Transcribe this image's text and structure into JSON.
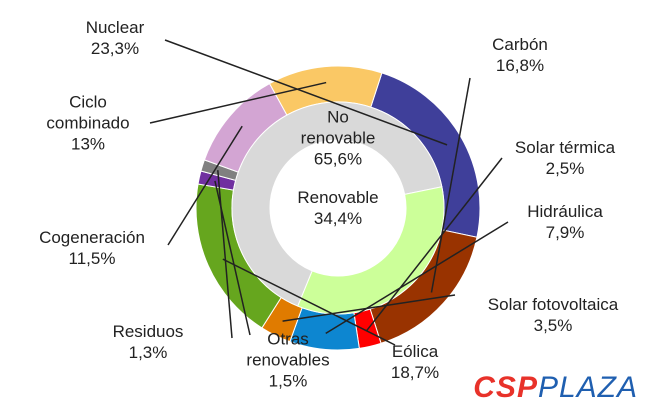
{
  "chart_data": {
    "type": "donut",
    "outer": {
      "categories": [
        "Nuclear",
        "Carbón",
        "Solar térmica",
        "Hidráulica",
        "Solar fotovoltaica",
        "Eólica",
        "Otras renovables",
        "Residuos",
        "Cogeneración",
        "Ciclo combinado"
      ],
      "values": [
        23.3,
        16.8,
        2.5,
        7.9,
        3.5,
        18.7,
        1.5,
        1.3,
        11.5,
        13
      ],
      "value_labels": [
        "23,3%",
        "16,8%",
        "2,5%",
        "7,9%",
        "3,5%",
        "18,7%",
        "1,5%",
        "1,3%",
        "11,5%",
        "13%"
      ],
      "colors": [
        "#3f3f9a",
        "#993300",
        "#ff0000",
        "#0d86d0",
        "#e07b00",
        "#66a61e",
        "#7030a0",
        "#808080",
        "#d3a5d3",
        "#fac865"
      ]
    },
    "inner": {
      "categories": [
        "No renovable",
        "Renovable"
      ],
      "values": [
        65.6,
        34.4
      ],
      "value_labels": [
        "65,6%",
        "34,4%"
      ],
      "colors": [
        "#d9d9d9",
        "#ccff99"
      ]
    }
  },
  "watermark": {
    "brand": "CSP",
    "suffix": "PLAZA"
  }
}
